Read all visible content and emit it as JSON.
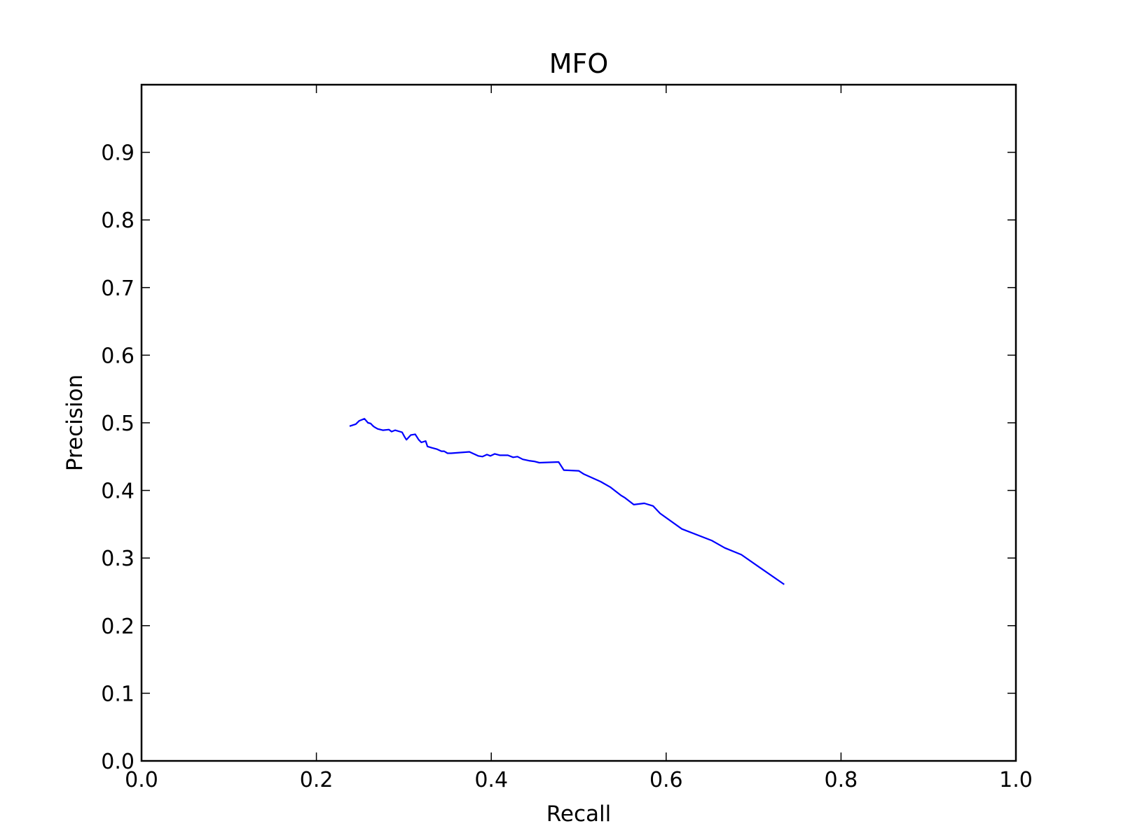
{
  "chart_data": {
    "type": "line",
    "title": "MFO",
    "xlabel": "Recall",
    "ylabel": "Precision",
    "xlim": [
      0.0,
      1.0
    ],
    "ylim": [
      0.0,
      1.0
    ],
    "xticks": [
      "0.0",
      "0.2",
      "0.4",
      "0.6",
      "0.8",
      "1.0"
    ],
    "yticks": [
      "0.0",
      "0.1",
      "0.2",
      "0.3",
      "0.4",
      "0.5",
      "0.6",
      "0.7",
      "0.8",
      "0.9"
    ],
    "grid": false,
    "legend": "none",
    "series": [
      {
        "color": "#0000ff",
        "x": [
          0.238,
          0.245,
          0.249,
          0.255,
          0.259,
          0.262,
          0.265,
          0.266,
          0.27,
          0.276,
          0.283,
          0.286,
          0.29,
          0.298,
          0.301,
          0.303,
          0.308,
          0.313,
          0.317,
          0.32,
          0.325,
          0.327,
          0.332,
          0.338,
          0.343,
          0.346,
          0.35,
          0.354,
          0.375,
          0.385,
          0.39,
          0.395,
          0.399,
          0.404,
          0.41,
          0.419,
          0.425,
          0.43,
          0.436,
          0.443,
          0.449,
          0.455,
          0.477,
          0.483,
          0.5,
          0.506,
          0.525,
          0.536,
          0.548,
          0.553,
          0.563,
          0.575,
          0.585,
          0.593,
          0.618,
          0.652,
          0.667,
          0.686,
          0.706,
          0.735
        ],
        "y": [
          0.495,
          0.498,
          0.503,
          0.506,
          0.5,
          0.499,
          0.495,
          0.494,
          0.491,
          0.489,
          0.49,
          0.487,
          0.489,
          0.486,
          0.479,
          0.475,
          0.482,
          0.483,
          0.475,
          0.471,
          0.473,
          0.465,
          0.463,
          0.461,
          0.458,
          0.458,
          0.455,
          0.455,
          0.457,
          0.451,
          0.45,
          0.453,
          0.451,
          0.454,
          0.452,
          0.452,
          0.449,
          0.45,
          0.446,
          0.444,
          0.443,
          0.441,
          0.442,
          0.43,
          0.429,
          0.424,
          0.413,
          0.405,
          0.393,
          0.389,
          0.379,
          0.381,
          0.377,
          0.366,
          0.343,
          0.326,
          0.315,
          0.305,
          0.287,
          0.261
        ]
      }
    ]
  }
}
